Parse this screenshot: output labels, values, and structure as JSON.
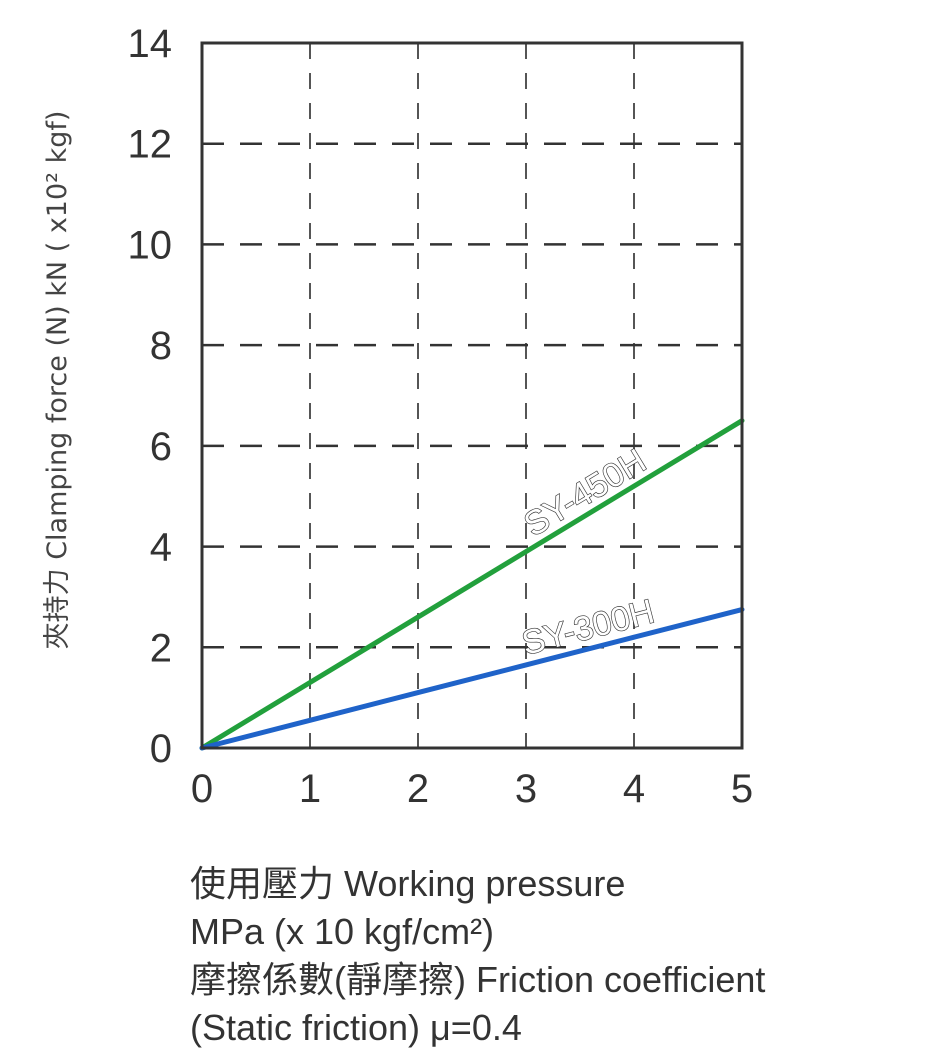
{
  "chart_data": {
    "type": "line",
    "title": "",
    "ylabel": "夾持力 Clamping force (N) kN ( x10² kgf)",
    "xlabel_lines": [
      "使用壓力 Working pressure",
      "MPa (x 10 kgf/cm²)",
      "摩擦係數(靜摩擦) Friction coefficient",
      "(Static friction) μ=0.4"
    ],
    "xlim": [
      0,
      5
    ],
    "ylim": [
      0,
      14
    ],
    "x_ticks": [
      "0",
      "1",
      "2",
      "3",
      "4",
      "5"
    ],
    "y_ticks": [
      "0",
      "2",
      "4",
      "6",
      "8",
      "10",
      "12",
      "14"
    ],
    "grid": true,
    "grid_style": "dashed",
    "series": [
      {
        "name": "SY-450H",
        "color": "#22a03c",
        "x": [
          0,
          1,
          2,
          3,
          4,
          5
        ],
        "y": [
          0,
          1.3,
          2.6,
          3.9,
          5.2,
          6.5
        ]
      },
      {
        "name": "SY-300H",
        "color": "#1f63c9",
        "x": [
          0,
          1,
          2,
          3,
          4,
          5
        ],
        "y": [
          0,
          0.55,
          1.1,
          1.65,
          2.2,
          2.75
        ]
      }
    ]
  }
}
